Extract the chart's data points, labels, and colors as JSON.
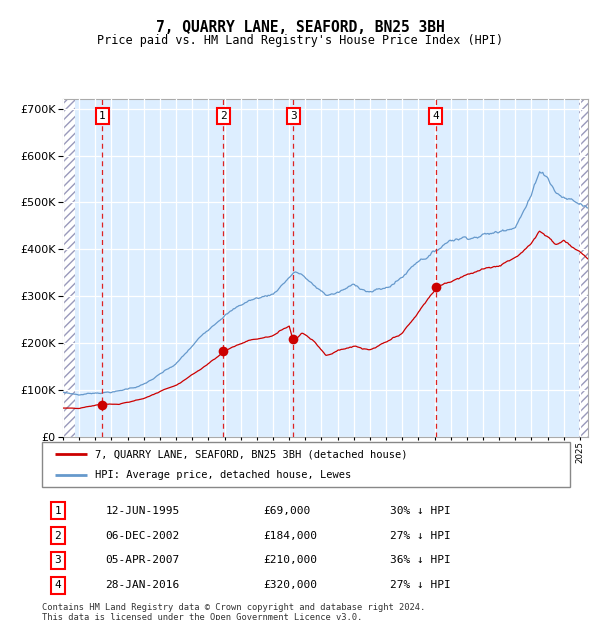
{
  "title": "7, QUARRY LANE, SEAFORD, BN25 3BH",
  "subtitle": "Price paid vs. HM Land Registry's House Price Index (HPI)",
  "legend_label_red": "7, QUARRY LANE, SEAFORD, BN25 3BH (detached house)",
  "legend_label_blue": "HPI: Average price, detached house, Lewes",
  "footer": "Contains HM Land Registry data © Crown copyright and database right 2024.\nThis data is licensed under the Open Government Licence v3.0.",
  "transactions": [
    {
      "num": 1,
      "date": "12-JUN-1995",
      "price": 69000,
      "price_str": "£69,000",
      "pct_str": "30% ↓ HPI",
      "x_year": 1995.44
    },
    {
      "num": 2,
      "date": "06-DEC-2002",
      "price": 184000,
      "price_str": "£184,000",
      "pct_str": "27% ↓ HPI",
      "x_year": 2002.92
    },
    {
      "num": 3,
      "date": "05-APR-2007",
      "price": 210000,
      "price_str": "£210,000",
      "pct_str": "36% ↓ HPI",
      "x_year": 2007.26
    },
    {
      "num": 4,
      "date": "28-JAN-2016",
      "price": 320000,
      "price_str": "£320,000",
      "pct_str": "27% ↓ HPI",
      "x_year": 2016.07
    }
  ],
  "hpi_color": "#6699cc",
  "price_color": "#cc0000",
  "dashed_color": "#dd2222",
  "plot_bg": "#ddeeff",
  "ylim": [
    0,
    720000
  ],
  "xlim_start": 1993.0,
  "xlim_end": 2025.5,
  "hatch_left_end": 1993.75,
  "hatch_right_start": 2024.92
}
